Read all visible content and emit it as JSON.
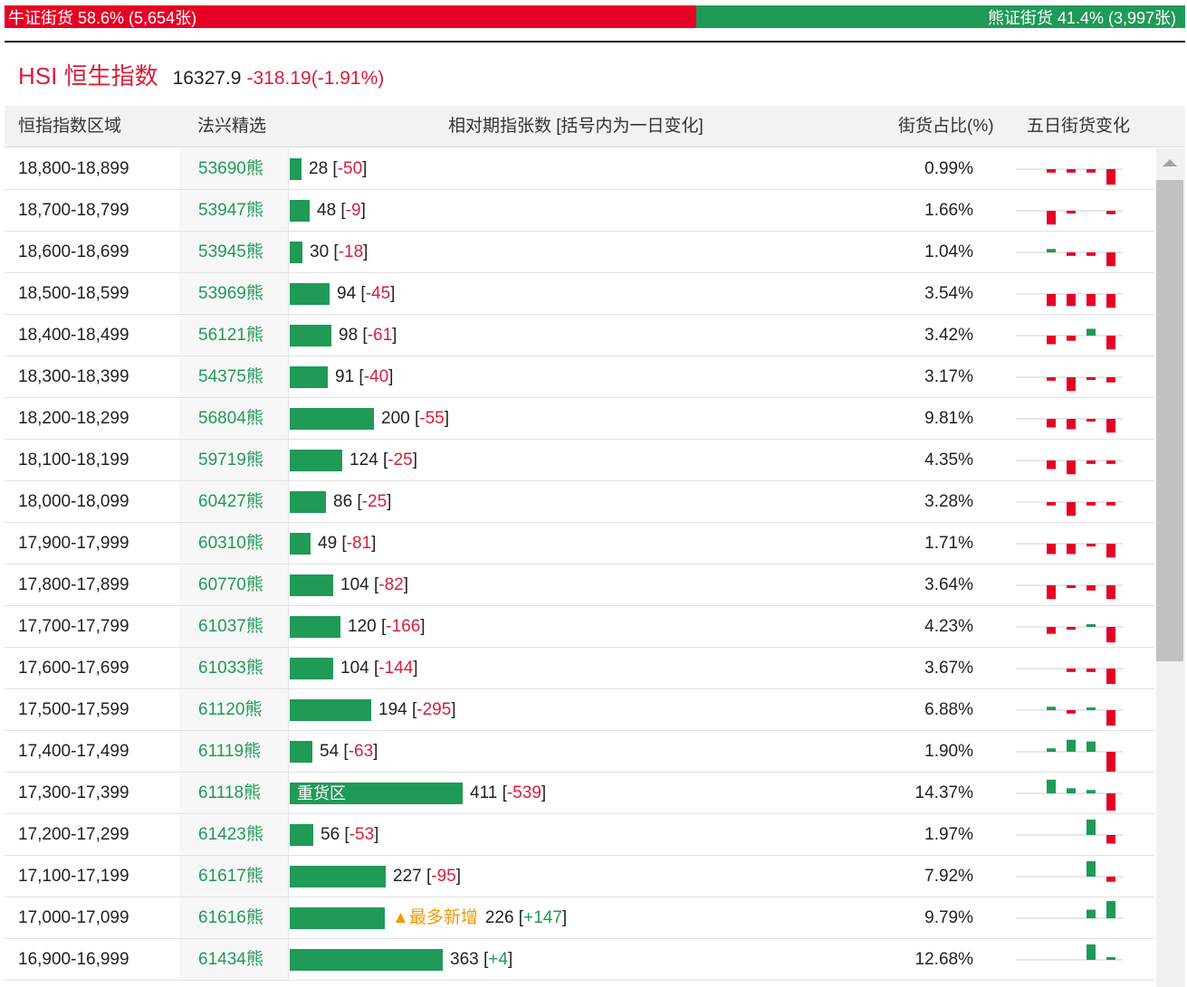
{
  "ratio": {
    "bull_text": "牛证街货 58.6% (5,654张)",
    "bear_text": "熊证街货 41.4% (3,997张)",
    "bull_pct": 58.6,
    "colors": {
      "bull": "#e60026",
      "bear": "#1f9a57"
    }
  },
  "index": {
    "name": "HSI 恒生指数",
    "value": "16327.9",
    "change": "-318.19(-1.91%)"
  },
  "table": {
    "headers": {
      "range": "恒指指数区域",
      "warrant": "法兴精选",
      "count": "相对期指张数 [括号内为一日变化]",
      "share": "街货占比(%)",
      "trend": "五日街货变化"
    },
    "rows": [
      {
        "range": "18,800-18,899",
        "warrant": "53690熊",
        "count": 28,
        "change": "-50",
        "share": "0.99%",
        "spark": [
          -2,
          -2,
          -2,
          -9
        ]
      },
      {
        "range": "18,700-18,799",
        "warrant": "53947熊",
        "count": 48,
        "change": "-9",
        "share": "1.66%",
        "spark": [
          -8,
          -1,
          0,
          -2
        ]
      },
      {
        "range": "18,600-18,699",
        "warrant": "53945熊",
        "count": 30,
        "change": "-18",
        "share": "1.04%",
        "spark": [
          2,
          -2,
          -2,
          -8
        ]
      },
      {
        "range": "18,500-18,599",
        "warrant": "53969熊",
        "count": 94,
        "change": "-45",
        "share": "3.54%",
        "spark": [
          -7,
          -7,
          -7,
          -8
        ]
      },
      {
        "range": "18,400-18,499",
        "warrant": "56121熊",
        "count": 98,
        "change": "-61",
        "share": "3.42%",
        "spark": [
          -5,
          -3,
          4,
          -8
        ]
      },
      {
        "range": "18,300-18,399",
        "warrant": "54375熊",
        "count": 91,
        "change": "-40",
        "share": "3.17%",
        "spark": [
          -2,
          -8,
          -1,
          -3
        ]
      },
      {
        "range": "18,200-18,299",
        "warrant": "56804熊",
        "count": 200,
        "change": "-55",
        "share": "9.81%",
        "spark": [
          -5,
          -6,
          -1,
          -8
        ]
      },
      {
        "range": "18,100-18,199",
        "warrant": "59719熊",
        "count": 124,
        "change": "-25",
        "share": "4.35%",
        "spark": [
          -5,
          -8,
          -2,
          -2
        ]
      },
      {
        "range": "18,000-18,099",
        "warrant": "60427熊",
        "count": 86,
        "change": "-25",
        "share": "3.28%",
        "spark": [
          -2,
          -8,
          -2,
          -2
        ]
      },
      {
        "range": "17,900-17,999",
        "warrant": "60310熊",
        "count": 49,
        "change": "-81",
        "share": "1.71%",
        "spark": [
          -6,
          -6,
          -1,
          -8
        ]
      },
      {
        "range": "17,800-17,899",
        "warrant": "60770熊",
        "count": 104,
        "change": "-82",
        "share": "3.64%",
        "spark": [
          -8,
          -1,
          -3,
          -8
        ]
      },
      {
        "range": "17,700-17,799",
        "warrant": "61037熊",
        "count": 120,
        "change": "-166",
        "share": "4.23%",
        "spark": [
          -4,
          -1,
          1,
          -9
        ]
      },
      {
        "range": "17,600-17,699",
        "warrant": "61033熊",
        "count": 104,
        "change": "-144",
        "share": "3.67%",
        "spark": [
          0,
          -2,
          -2,
          -9
        ]
      },
      {
        "range": "17,500-17,599",
        "warrant": "61120熊",
        "count": 194,
        "change": "-295",
        "share": "6.88%",
        "spark": [
          2,
          -2,
          1,
          -9
        ]
      },
      {
        "range": "17,400-17,499",
        "warrant": "61119熊",
        "count": 54,
        "change": "-63",
        "share": "1.90%",
        "spark": [
          2,
          7,
          6,
          -12
        ]
      },
      {
        "range": "17,300-17,399",
        "warrant": "61118熊",
        "count": 411,
        "change": "-539",
        "share": "14.37%",
        "spark": [
          8,
          3,
          2,
          -10
        ],
        "label": "重货区"
      },
      {
        "range": "17,200-17,299",
        "warrant": "61423熊",
        "count": 56,
        "change": "-53",
        "share": "1.97%",
        "spark": [
          0,
          0,
          9,
          -5
        ]
      },
      {
        "range": "17,100-17,199",
        "warrant": "61617熊",
        "count": 227,
        "change": "-95",
        "share": "7.92%",
        "spark": [
          0,
          0,
          9,
          -3
        ]
      },
      {
        "range": "17,000-17,099",
        "warrant": "61616熊",
        "count": 226,
        "change": "+147",
        "share": "9.79%",
        "spark": [
          0,
          0,
          5,
          10
        ],
        "label_right": "最多新增"
      },
      {
        "range": "16,900-16,999",
        "warrant": "61434熊",
        "count": 363,
        "change": "+4",
        "share": "12.68%",
        "spark": [
          0,
          0,
          9,
          1
        ]
      }
    ]
  }
}
